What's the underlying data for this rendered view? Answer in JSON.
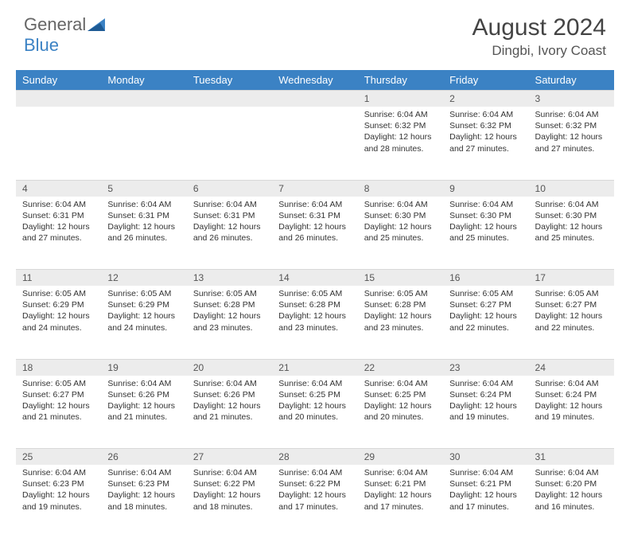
{
  "logo": {
    "word1": "General",
    "word2": "Blue"
  },
  "title": "August 2024",
  "location": "Dingbi, Ivory Coast",
  "colors": {
    "header_bg": "#3b82c4",
    "header_text": "#ffffff",
    "daynum_bg": "#ececec",
    "text": "#333333",
    "logo_blue": "#3b82c4"
  },
  "weekdays": [
    "Sunday",
    "Monday",
    "Tuesday",
    "Wednesday",
    "Thursday",
    "Friday",
    "Saturday"
  ],
  "weeks": [
    {
      "nums": [
        "",
        "",
        "",
        "",
        "1",
        "2",
        "3"
      ],
      "cells": [
        null,
        null,
        null,
        null,
        {
          "sunrise": "Sunrise: 6:04 AM",
          "sunset": "Sunset: 6:32 PM",
          "day": "Daylight: 12 hours and 28 minutes."
        },
        {
          "sunrise": "Sunrise: 6:04 AM",
          "sunset": "Sunset: 6:32 PM",
          "day": "Daylight: 12 hours and 27 minutes."
        },
        {
          "sunrise": "Sunrise: 6:04 AM",
          "sunset": "Sunset: 6:32 PM",
          "day": "Daylight: 12 hours and 27 minutes."
        }
      ]
    },
    {
      "nums": [
        "4",
        "5",
        "6",
        "7",
        "8",
        "9",
        "10"
      ],
      "cells": [
        {
          "sunrise": "Sunrise: 6:04 AM",
          "sunset": "Sunset: 6:31 PM",
          "day": "Daylight: 12 hours and 27 minutes."
        },
        {
          "sunrise": "Sunrise: 6:04 AM",
          "sunset": "Sunset: 6:31 PM",
          "day": "Daylight: 12 hours and 26 minutes."
        },
        {
          "sunrise": "Sunrise: 6:04 AM",
          "sunset": "Sunset: 6:31 PM",
          "day": "Daylight: 12 hours and 26 minutes."
        },
        {
          "sunrise": "Sunrise: 6:04 AM",
          "sunset": "Sunset: 6:31 PM",
          "day": "Daylight: 12 hours and 26 minutes."
        },
        {
          "sunrise": "Sunrise: 6:04 AM",
          "sunset": "Sunset: 6:30 PM",
          "day": "Daylight: 12 hours and 25 minutes."
        },
        {
          "sunrise": "Sunrise: 6:04 AM",
          "sunset": "Sunset: 6:30 PM",
          "day": "Daylight: 12 hours and 25 minutes."
        },
        {
          "sunrise": "Sunrise: 6:04 AM",
          "sunset": "Sunset: 6:30 PM",
          "day": "Daylight: 12 hours and 25 minutes."
        }
      ]
    },
    {
      "nums": [
        "11",
        "12",
        "13",
        "14",
        "15",
        "16",
        "17"
      ],
      "cells": [
        {
          "sunrise": "Sunrise: 6:05 AM",
          "sunset": "Sunset: 6:29 PM",
          "day": "Daylight: 12 hours and 24 minutes."
        },
        {
          "sunrise": "Sunrise: 6:05 AM",
          "sunset": "Sunset: 6:29 PM",
          "day": "Daylight: 12 hours and 24 minutes."
        },
        {
          "sunrise": "Sunrise: 6:05 AM",
          "sunset": "Sunset: 6:28 PM",
          "day": "Daylight: 12 hours and 23 minutes."
        },
        {
          "sunrise": "Sunrise: 6:05 AM",
          "sunset": "Sunset: 6:28 PM",
          "day": "Daylight: 12 hours and 23 minutes."
        },
        {
          "sunrise": "Sunrise: 6:05 AM",
          "sunset": "Sunset: 6:28 PM",
          "day": "Daylight: 12 hours and 23 minutes."
        },
        {
          "sunrise": "Sunrise: 6:05 AM",
          "sunset": "Sunset: 6:27 PM",
          "day": "Daylight: 12 hours and 22 minutes."
        },
        {
          "sunrise": "Sunrise: 6:05 AM",
          "sunset": "Sunset: 6:27 PM",
          "day": "Daylight: 12 hours and 22 minutes."
        }
      ]
    },
    {
      "nums": [
        "18",
        "19",
        "20",
        "21",
        "22",
        "23",
        "24"
      ],
      "cells": [
        {
          "sunrise": "Sunrise: 6:05 AM",
          "sunset": "Sunset: 6:27 PM",
          "day": "Daylight: 12 hours and 21 minutes."
        },
        {
          "sunrise": "Sunrise: 6:04 AM",
          "sunset": "Sunset: 6:26 PM",
          "day": "Daylight: 12 hours and 21 minutes."
        },
        {
          "sunrise": "Sunrise: 6:04 AM",
          "sunset": "Sunset: 6:26 PM",
          "day": "Daylight: 12 hours and 21 minutes."
        },
        {
          "sunrise": "Sunrise: 6:04 AM",
          "sunset": "Sunset: 6:25 PM",
          "day": "Daylight: 12 hours and 20 minutes."
        },
        {
          "sunrise": "Sunrise: 6:04 AM",
          "sunset": "Sunset: 6:25 PM",
          "day": "Daylight: 12 hours and 20 minutes."
        },
        {
          "sunrise": "Sunrise: 6:04 AM",
          "sunset": "Sunset: 6:24 PM",
          "day": "Daylight: 12 hours and 19 minutes."
        },
        {
          "sunrise": "Sunrise: 6:04 AM",
          "sunset": "Sunset: 6:24 PM",
          "day": "Daylight: 12 hours and 19 minutes."
        }
      ]
    },
    {
      "nums": [
        "25",
        "26",
        "27",
        "28",
        "29",
        "30",
        "31"
      ],
      "cells": [
        {
          "sunrise": "Sunrise: 6:04 AM",
          "sunset": "Sunset: 6:23 PM",
          "day": "Daylight: 12 hours and 19 minutes."
        },
        {
          "sunrise": "Sunrise: 6:04 AM",
          "sunset": "Sunset: 6:23 PM",
          "day": "Daylight: 12 hours and 18 minutes."
        },
        {
          "sunrise": "Sunrise: 6:04 AM",
          "sunset": "Sunset: 6:22 PM",
          "day": "Daylight: 12 hours and 18 minutes."
        },
        {
          "sunrise": "Sunrise: 6:04 AM",
          "sunset": "Sunset: 6:22 PM",
          "day": "Daylight: 12 hours and 17 minutes."
        },
        {
          "sunrise": "Sunrise: 6:04 AM",
          "sunset": "Sunset: 6:21 PM",
          "day": "Daylight: 12 hours and 17 minutes."
        },
        {
          "sunrise": "Sunrise: 6:04 AM",
          "sunset": "Sunset: 6:21 PM",
          "day": "Daylight: 12 hours and 17 minutes."
        },
        {
          "sunrise": "Sunrise: 6:04 AM",
          "sunset": "Sunset: 6:20 PM",
          "day": "Daylight: 12 hours and 16 minutes."
        }
      ]
    }
  ]
}
